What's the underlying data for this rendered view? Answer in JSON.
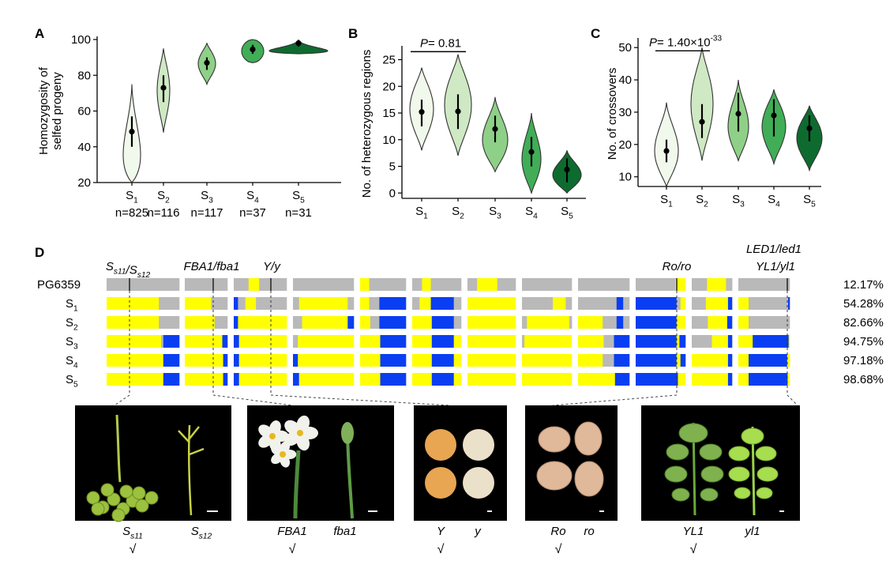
{
  "panel_labels": [
    "A",
    "B",
    "C",
    "D"
  ],
  "colors": {
    "S1": "#f1f8ec",
    "S2": "#cfe9c4",
    "S3": "#8fd088",
    "S4": "#41ad57",
    "S5": "#0e6b2f",
    "yellow": "#ffff00",
    "blue": "#0a3ef2",
    "gray": "#b9b9b9",
    "outline": "#333333"
  },
  "chart_data": [
    {
      "id": "A",
      "type": "violin",
      "ylabel": "Homozygosity of selfed progeny",
      "ylim": [
        20,
        100
      ],
      "yticks": [
        20,
        40,
        60,
        80,
        100
      ],
      "categories": [
        "S1",
        "S2",
        "S3",
        "S4",
        "S5"
      ],
      "counts": [
        "n=825",
        "n=116",
        "n=117",
        "n=37",
        "n=31"
      ],
      "median": [
        48.5,
        73,
        87,
        94.5,
        98
      ],
      "iqr": [
        [
          40,
          57
        ],
        [
          65,
          80
        ],
        [
          83,
          90
        ],
        [
          92,
          97
        ],
        [
          96,
          99
        ]
      ],
      "range": [
        [
          20,
          75
        ],
        [
          48,
          95
        ],
        [
          75,
          98
        ],
        [
          87,
          100
        ],
        [
          92,
          100
        ]
      ]
    },
    {
      "id": "B",
      "type": "violin",
      "ylabel": "No. of heterozygous regions",
      "ylim": [
        -1,
        27
      ],
      "yticks": [
        0,
        5,
        10,
        15,
        20,
        25
      ],
      "categories": [
        "S1",
        "S2",
        "S3",
        "S4",
        "S5"
      ],
      "median": [
        15.2,
        15.3,
        12,
        7.7,
        4.4
      ],
      "iqr": [
        [
          12.5,
          17.5
        ],
        [
          12,
          18.5
        ],
        [
          9.5,
          14.5
        ],
        [
          5,
          10.5
        ],
        [
          2,
          6.5
        ]
      ],
      "range": [
        [
          8,
          23.5
        ],
        [
          7,
          26
        ],
        [
          4,
          18
        ],
        [
          0,
          15
        ],
        [
          0,
          8
        ]
      ],
      "annotation": {
        "p_label": "P",
        "text": "= 0.81",
        "between": [
          "S1",
          "S2"
        ],
        "level": 26.5
      }
    },
    {
      "id": "C",
      "type": "violin",
      "ylabel": "No. of crossovers",
      "ylim": [
        7,
        52
      ],
      "yticks": [
        10,
        20,
        30,
        40,
        50
      ],
      "categories": [
        "S1",
        "S2",
        "S3",
        "S4",
        "S5"
      ],
      "median": [
        18,
        27,
        29.5,
        29,
        25
      ],
      "iqr": [
        [
          14.5,
          21.5
        ],
        [
          22,
          32.5
        ],
        [
          24,
          36
        ],
        [
          22.5,
          34
        ],
        [
          21,
          29
        ]
      ],
      "range": [
        [
          7,
          33
        ],
        [
          15,
          50
        ],
        [
          15,
          40
        ],
        [
          14,
          37
        ],
        [
          12,
          32
        ]
      ],
      "annotation": {
        "p_label": "P",
        "text": "= 1.40×10",
        "exponent": "-33",
        "between": [
          "S1",
          "S2"
        ],
        "level": 49
      }
    }
  ],
  "genotype": {
    "row_labels": [
      "PG6359",
      "S1",
      "S2",
      "S3",
      "S4",
      "S5"
    ],
    "percentages": [
      "12.17%",
      "54.28%",
      "82.66%",
      "94.75%",
      "97.18%",
      "98.68%"
    ],
    "loci": [
      {
        "label": "S_s11/S_s12",
        "italic": true
      },
      {
        "label": "FBA1/fba1",
        "italic": true
      },
      {
        "label": "Y/y",
        "italic": true
      },
      {
        "label": "Ro/ro",
        "italic": true
      },
      {
        "label": "LED1/led1",
        "italic": true
      },
      {
        "label": "YL1/yl1",
        "italic": true
      }
    ]
  },
  "photos": [
    {
      "left": "S_s11",
      "right": "S_s12",
      "check": "√"
    },
    {
      "left": "FBA1",
      "right": "fba1",
      "check": "√"
    },
    {
      "left": "Y",
      "right": "y",
      "check": "√"
    },
    {
      "left": "Ro",
      "right": "ro",
      "check": "√"
    },
    {
      "left": "YL1",
      "right": "yl1",
      "check": "√"
    }
  ]
}
